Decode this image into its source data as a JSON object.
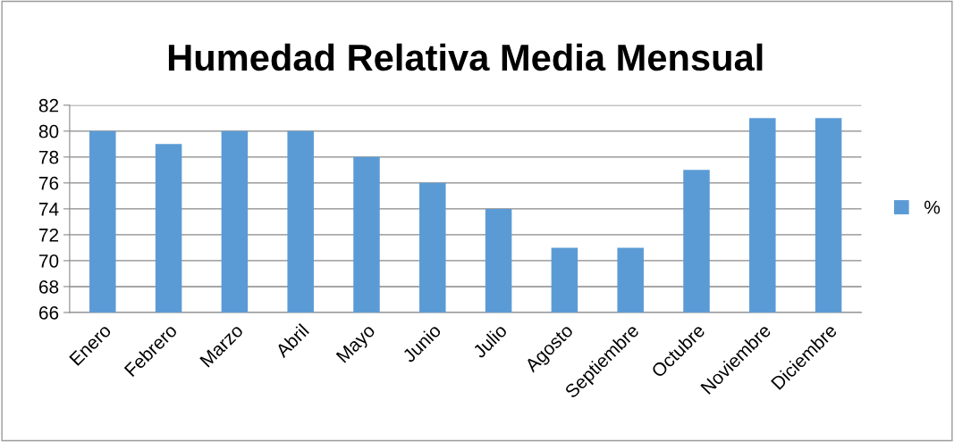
{
  "chart_data": {
    "type": "bar",
    "title": "Humedad Relativa Media Mensual",
    "categories": [
      "Enero",
      "Febrero",
      "Marzo",
      "Abril",
      "Mayo",
      "Junio",
      "Julio",
      "Agosto",
      "Septiembre",
      "Octubre",
      "Noviembre",
      "Diciembre"
    ],
    "series": [
      {
        "name": "%",
        "color": "#5b9bd5",
        "values": [
          80,
          79,
          80,
          80,
          78,
          76,
          74,
          71,
          71,
          77,
          81,
          81
        ]
      }
    ],
    "ylim": [
      66,
      82
    ],
    "yticks": [
      66,
      68,
      70,
      72,
      74,
      76,
      78,
      80,
      82
    ],
    "grid": "y",
    "legend": "right"
  }
}
